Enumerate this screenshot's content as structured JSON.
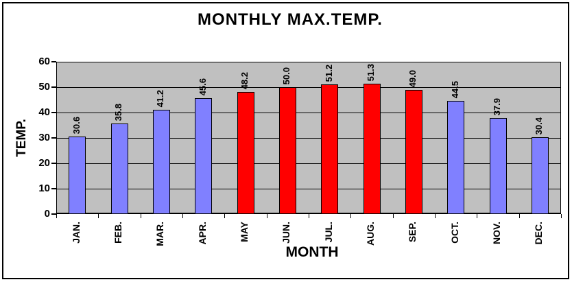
{
  "chart_data": {
    "type": "bar",
    "title": "MONTHLY MAX.TEMP.",
    "xlabel": "MONTH",
    "ylabel": "TEMP.",
    "categories": [
      "JAN.",
      "FEB.",
      "MAR.",
      "APR.",
      "MAY",
      "JUN.",
      "JUL.",
      "AUG.",
      "SEP.",
      "OCT.",
      "NOV.",
      "DEC."
    ],
    "values": [
      30.6,
      35.8,
      41.2,
      45.6,
      48.2,
      50.0,
      51.2,
      51.3,
      49.0,
      44.5,
      37.9,
      30.4
    ],
    "value_labels": [
      "30.6",
      "35.8",
      "41.2",
      "45.6",
      "48.2",
      "50.0",
      "51.2",
      "51.3",
      "49.0",
      "44.5",
      "37.9",
      "30.4"
    ],
    "bar_colors": [
      "#8080FF",
      "#8080FF",
      "#8080FF",
      "#8080FF",
      "#FF0000",
      "#FF0000",
      "#FF0000",
      "#FF0000",
      "#FF0000",
      "#8080FF",
      "#8080FF",
      "#8080FF"
    ],
    "ylim": [
      0,
      60
    ],
    "yticks": [
      0,
      10,
      20,
      30,
      40,
      50,
      60
    ],
    "grid": true,
    "legend": false,
    "plot_bg": "#C0C0C0",
    "bar_border": "#000000",
    "gridline_color": "#000000"
  }
}
